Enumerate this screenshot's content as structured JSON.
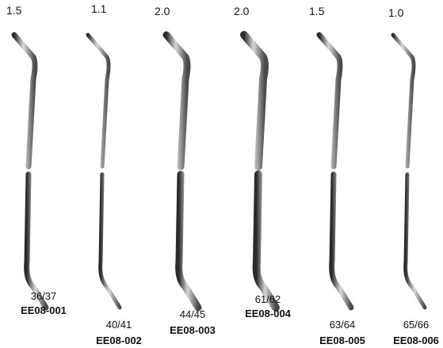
{
  "items": [
    {
      "size": "1.5",
      "number": "36/37",
      "code": "EE08-001"
    },
    {
      "size": "1.1",
      "number": "40/41",
      "code": "EE08-002"
    },
    {
      "size": "2.0",
      "number": "44/45",
      "code": "EE08-003"
    },
    {
      "size": "2.0",
      "number": "61/62",
      "code": "EE08-004"
    },
    {
      "size": "1.5",
      "number": "63/64",
      "code": "EE08-005"
    },
    {
      "size": "1.0",
      "number": "65/66",
      "code": "EE08-006"
    }
  ]
}
